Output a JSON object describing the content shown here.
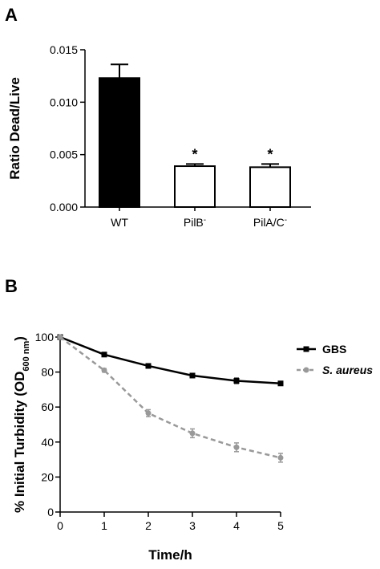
{
  "chart_data": [
    {
      "panel": "A",
      "type": "bar",
      "ylabel": "Ratio Dead/Live",
      "ylim": [
        0,
        0.015
      ],
      "yticks": [
        "0.000",
        "0.005",
        "0.010",
        "0.015"
      ],
      "categories": [
        {
          "base": "WT",
          "sup": ""
        },
        {
          "base": "PilB",
          "sup": "-"
        },
        {
          "base": "PilA/C",
          "sup": "-"
        }
      ],
      "values": [
        0.0123,
        0.0039,
        0.0038
      ],
      "errors": [
        0.0013,
        0.0002,
        0.0003
      ],
      "fills": [
        "#000000",
        "#ffffff",
        "#ffffff"
      ],
      "significance": [
        "",
        "*",
        "*"
      ]
    },
    {
      "panel": "B",
      "type": "line",
      "xlabel": "Time/h",
      "ylabel": {
        "base": "% Initial Turbidity (OD",
        "sub": "600 nm",
        "end": ")"
      },
      "xlim": [
        0,
        5
      ],
      "ylim": [
        0,
        100
      ],
      "xticks": [
        "0",
        "1",
        "2",
        "3",
        "4",
        "5"
      ],
      "yticks": [
        "0",
        "20",
        "40",
        "60",
        "80",
        "100"
      ],
      "legend_position": "right",
      "series": [
        {
          "name": "GBS",
          "italic": false,
          "color": "#000000",
          "marker": "square",
          "dashed": false,
          "x": [
            0,
            1,
            2,
            3,
            4,
            5
          ],
          "y": [
            100,
            90,
            83.5,
            78,
            75,
            73.5
          ],
          "err": [
            0,
            1,
            1,
            1,
            1.5,
            1
          ]
        },
        {
          "name": "S. aureus",
          "italic": true,
          "color": "#999999",
          "marker": "circle",
          "dashed": true,
          "x": [
            0,
            1,
            2,
            3,
            4,
            5
          ],
          "y": [
            100,
            81,
            56.5,
            45,
            37,
            31
          ],
          "err": [
            0,
            1,
            2,
            2.5,
            2.5,
            2.5
          ]
        }
      ]
    }
  ]
}
